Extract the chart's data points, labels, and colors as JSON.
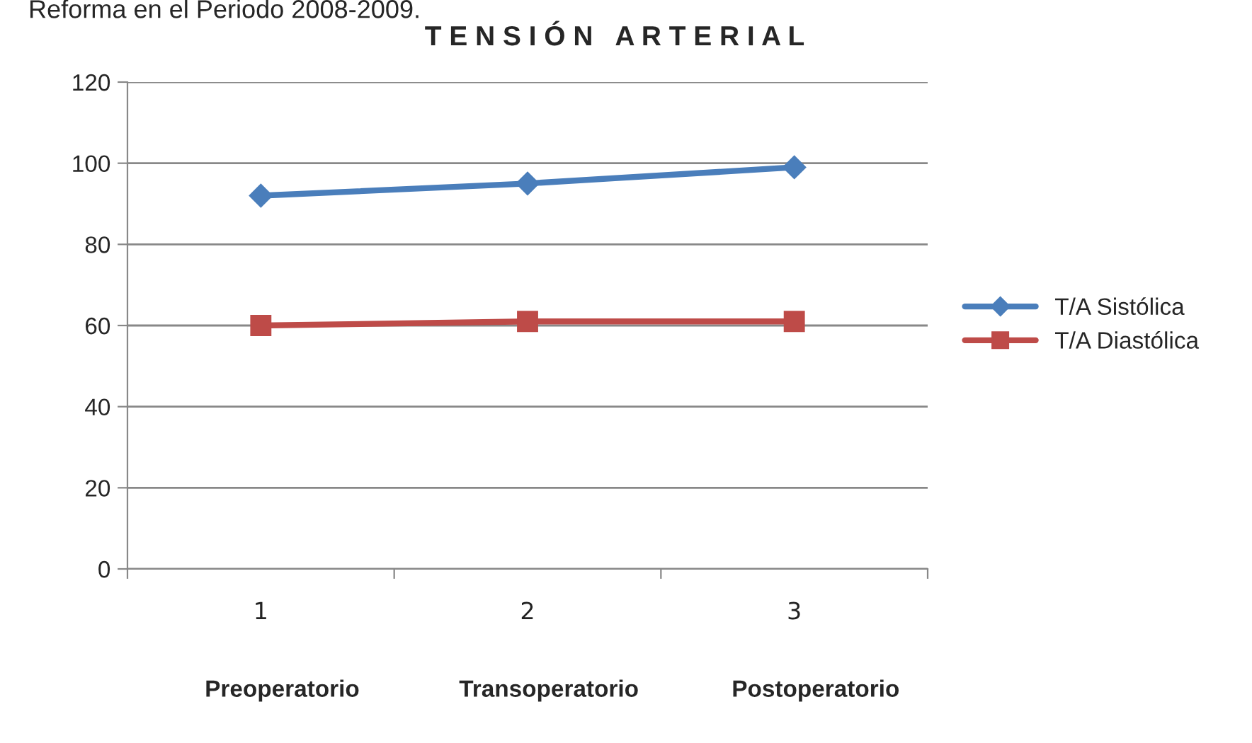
{
  "chart_data": {
    "type": "line",
    "title": "T E N S I Ó N   A R T E R I A L",
    "categories": [
      "1",
      "2",
      "3"
    ],
    "series": [
      {
        "name": "T/A Sistólica",
        "color": "#4a7ebb",
        "marker": "diamond",
        "values": [
          92,
          95,
          99
        ]
      },
      {
        "name": "T/A Diastólica",
        "color": "#be4b48",
        "marker": "square",
        "values": [
          60,
          61,
          61
        ]
      }
    ],
    "ylim": [
      0,
      120
    ],
    "yticks": [
      0,
      20,
      40,
      60,
      80,
      100,
      120
    ],
    "grid": "y",
    "legend": "right",
    "annotations": [
      "Reforma en el Periodo 2008-2009.",
      "Preoperatorio",
      "Transoperatorio",
      "Postoperatorio"
    ]
  }
}
